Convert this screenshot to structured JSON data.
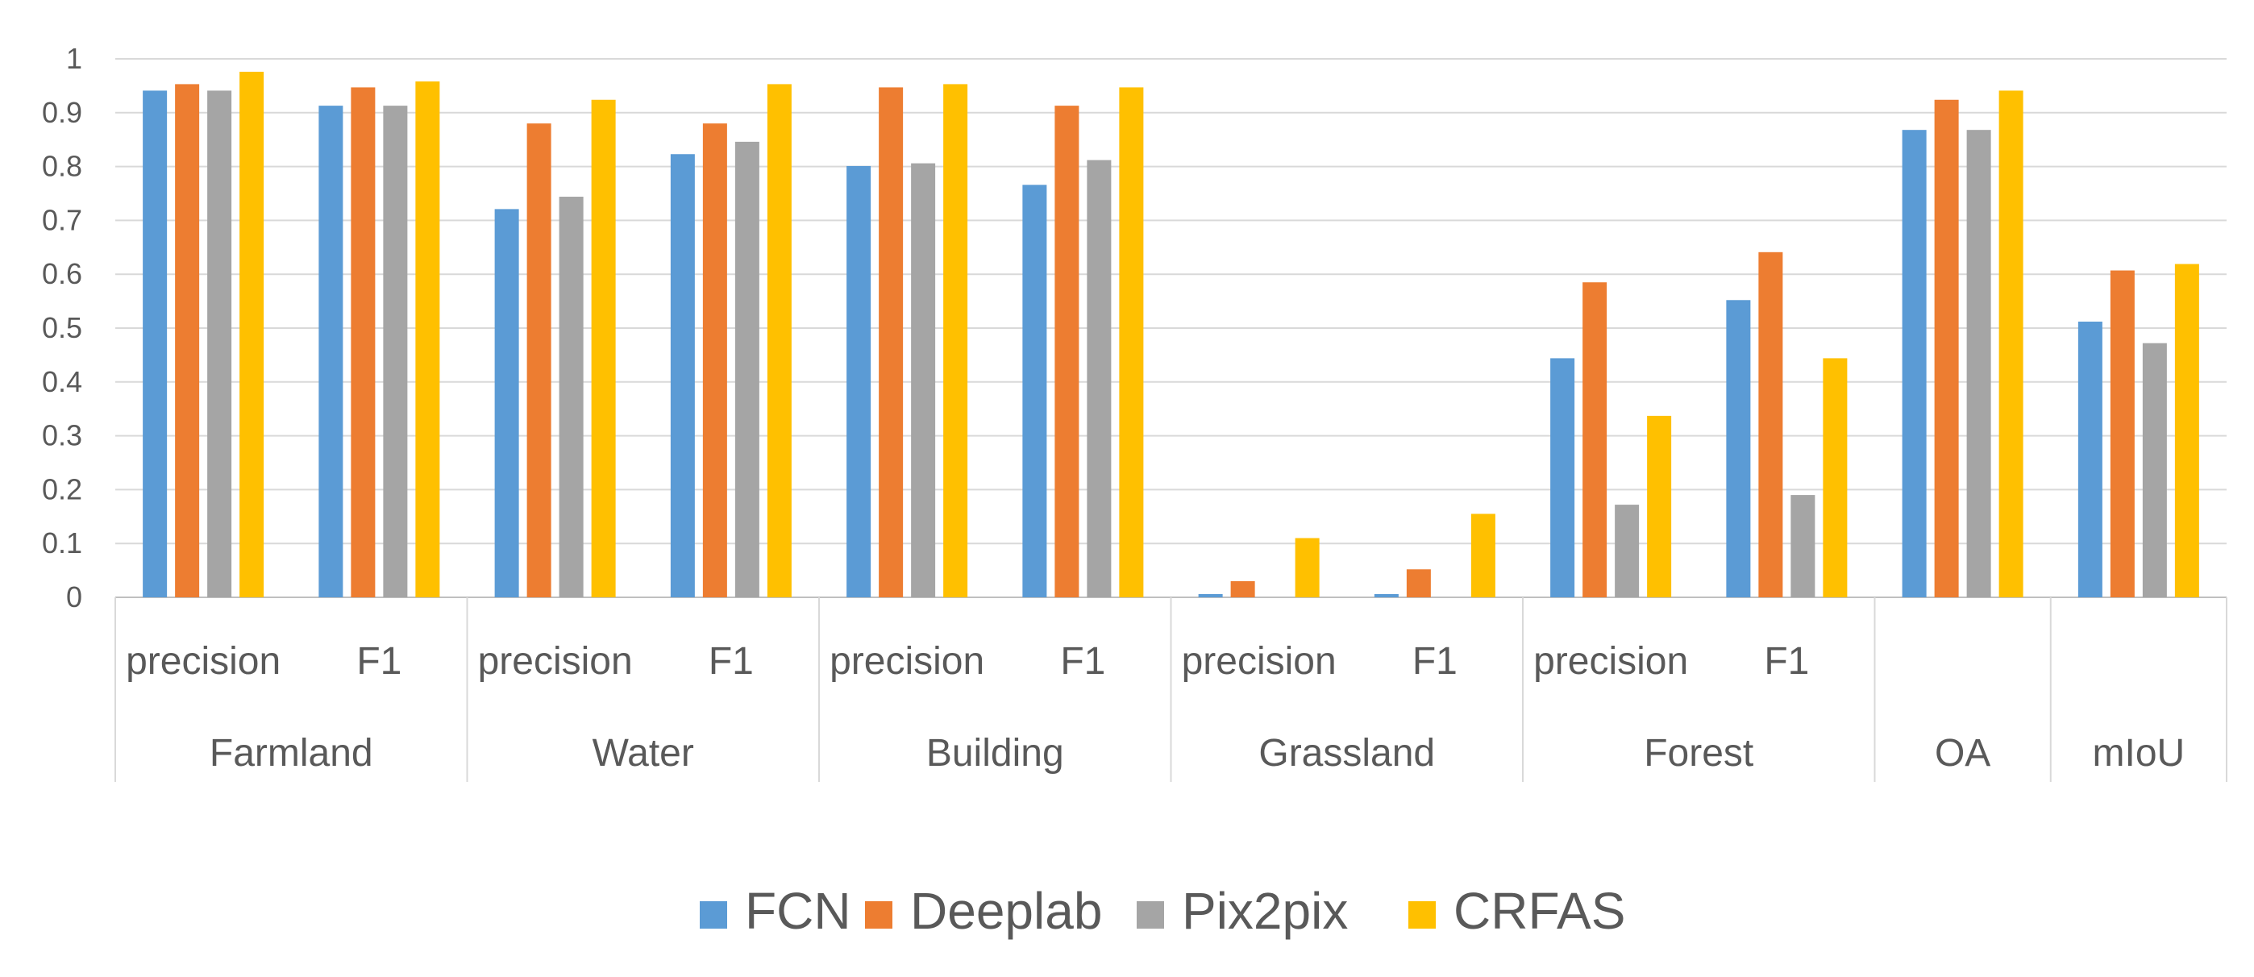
{
  "chart_data": {
    "type": "bar",
    "title": "",
    "xlabel": "",
    "ylabel": "",
    "ylim": [
      0,
      1
    ],
    "yticks": [
      "0",
      "0.1",
      "0.2",
      "0.3",
      "0.4",
      "0.5",
      "0.6",
      "0.7",
      "0.8",
      "0.9",
      "1"
    ],
    "grid": true,
    "legend_position": "bottom",
    "groups": [
      {
        "name": "Farmland",
        "metrics": [
          "precision",
          "F1"
        ]
      },
      {
        "name": "Water",
        "metrics": [
          "precision",
          "F1"
        ]
      },
      {
        "name": "Building",
        "metrics": [
          "precision",
          "F1"
        ]
      },
      {
        "name": "Grassland",
        "metrics": [
          "precision",
          "F1"
        ]
      },
      {
        "name": "Forest",
        "metrics": [
          "precision",
          "F1"
        ]
      },
      {
        "name": "OA",
        "metrics": [
          ""
        ]
      },
      {
        "name": "mIoU",
        "metrics": [
          ""
        ]
      }
    ],
    "categories": [
      "Farmland precision",
      "Farmland F1",
      "Water precision",
      "Water F1",
      "Building precision",
      "Building F1",
      "Grassland precision",
      "Grassland F1",
      "Forest precision",
      "Forest F1",
      "OA",
      "mIoU"
    ],
    "series": [
      {
        "name": "FCN",
        "color": "#5B9BD5",
        "values": [
          0.941,
          0.913,
          0.721,
          0.823,
          0.801,
          0.766,
          0.006,
          0.006,
          0.444,
          0.552,
          0.868,
          0.512
        ]
      },
      {
        "name": "Deeplab",
        "color": "#ED7D31",
        "values": [
          0.953,
          0.947,
          0.88,
          0.88,
          0.947,
          0.913,
          0.03,
          0.052,
          0.585,
          0.641,
          0.924,
          0.607
        ]
      },
      {
        "name": "Pix2pix",
        "color": "#A5A5A5",
        "values": [
          0.941,
          0.913,
          0.744,
          0.846,
          0.806,
          0.812,
          0.0,
          0.0,
          0.172,
          0.19,
          0.868,
          0.472
        ]
      },
      {
        "name": "CRFAS",
        "color": "#FFC000",
        "values": [
          0.976,
          0.958,
          0.924,
          0.953,
          0.953,
          0.947,
          0.11,
          0.155,
          0.337,
          0.444,
          0.941,
          0.619
        ]
      }
    ]
  }
}
